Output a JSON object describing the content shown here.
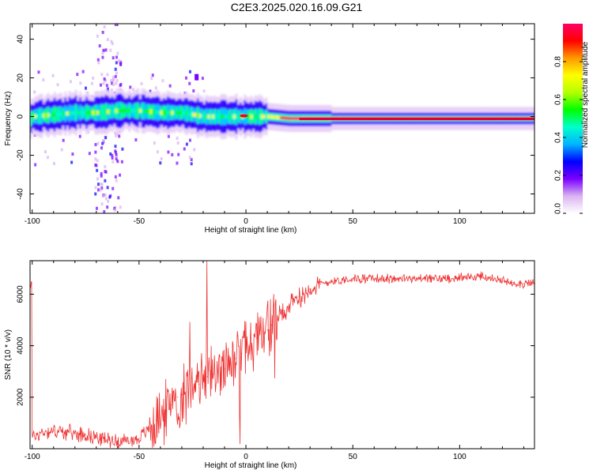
{
  "title": "C2E3.2025.020.16.09.G21",
  "chart_data": [
    {
      "type": "heatmap",
      "xlabel": "Height of straight line (km)",
      "ylabel": "Frequency (Hz)",
      "xlim": [
        -101,
        135
      ],
      "ylim": [
        -50,
        48
      ],
      "xticks": [
        -100,
        -50,
        0,
        50,
        100
      ],
      "yticks": [
        -40,
        -20,
        0,
        20,
        40
      ],
      "grid": false,
      "ridge": [
        {
          "x": -100,
          "y": 0
        },
        {
          "x": -90,
          "y": 1
        },
        {
          "x": -80,
          "y": 2
        },
        {
          "x": -70,
          "y": 2
        },
        {
          "x": -60,
          "y": 3
        },
        {
          "x": -50,
          "y": 3
        },
        {
          "x": -40,
          "y": 2
        },
        {
          "x": -30,
          "y": 2
        },
        {
          "x": -20,
          "y": 0
        },
        {
          "x": -10,
          "y": 0
        },
        {
          "x": 0,
          "y": 0
        },
        {
          "x": 10,
          "y": 0
        },
        {
          "x": 20,
          "y": -1
        },
        {
          "x": 40,
          "y": -1
        },
        {
          "x": 60,
          "y": -1
        },
        {
          "x": 80,
          "y": -1
        },
        {
          "x": 100,
          "y": -1
        },
        {
          "x": 120,
          "y": -1
        },
        {
          "x": 135,
          "y": -1
        }
      ],
      "colorbar": {
        "label": "Normalized spectral amplitude",
        "range": [
          0,
          1
        ],
        "ticks": [
          "0.0",
          "0.2",
          "0.4",
          "0.6",
          "0.8"
        ],
        "tick_values": [
          0,
          0.2,
          0.4,
          0.6,
          0.8
        ],
        "colors": [
          "#ffffff",
          "#d9b3f0",
          "#7a00ff",
          "#0000ff",
          "#00b4ff",
          "#00ffcc",
          "#00ff00",
          "#b4ff00",
          "#ffff00",
          "#ff9900",
          "#ff0000",
          "#ff0066"
        ]
      }
    },
    {
      "type": "line",
      "xlabel": "Height of straight line (km)",
      "ylabel": "SNR (10 * v/v)",
      "xlim": [
        -101,
        135
      ],
      "ylim": [
        0,
        7300
      ],
      "xticks": [
        -100,
        -50,
        0,
        50,
        100
      ],
      "yticks": [
        2000,
        4000,
        6000
      ],
      "grid": false,
      "series": [
        {
          "color": "#ee3333",
          "x": [
            -100,
            -95,
            -90,
            -85,
            -80,
            -75,
            -70,
            -65,
            -60,
            -55,
            -50,
            -45,
            -42,
            -38,
            -35,
            -32,
            -30,
            -28,
            -25,
            -22,
            -20,
            -18,
            -15,
            -13,
            -10,
            -8,
            -5,
            -2,
            0,
            2,
            5,
            8,
            10,
            12,
            15,
            18,
            20,
            25,
            30,
            35,
            40,
            45,
            50,
            60,
            70,
            80,
            90,
            100,
            105,
            110,
            115,
            120,
            125,
            130,
            135
          ],
          "y": [
            450,
            650,
            700,
            650,
            600,
            550,
            450,
            350,
            300,
            300,
            400,
            800,
            1100,
            1400,
            1700,
            2000,
            2100,
            2200,
            2300,
            2500,
            2600,
            2800,
            2900,
            3000,
            3100,
            3300,
            3500,
            3700,
            3900,
            4100,
            4300,
            4500,
            4600,
            4800,
            5100,
            5300,
            5500,
            5900,
            6200,
            6400,
            6500,
            6550,
            6600,
            6600,
            6600,
            6600,
            6600,
            6650,
            6650,
            6700,
            6600,
            6500,
            6450,
            6400,
            6450
          ]
        }
      ]
    }
  ]
}
